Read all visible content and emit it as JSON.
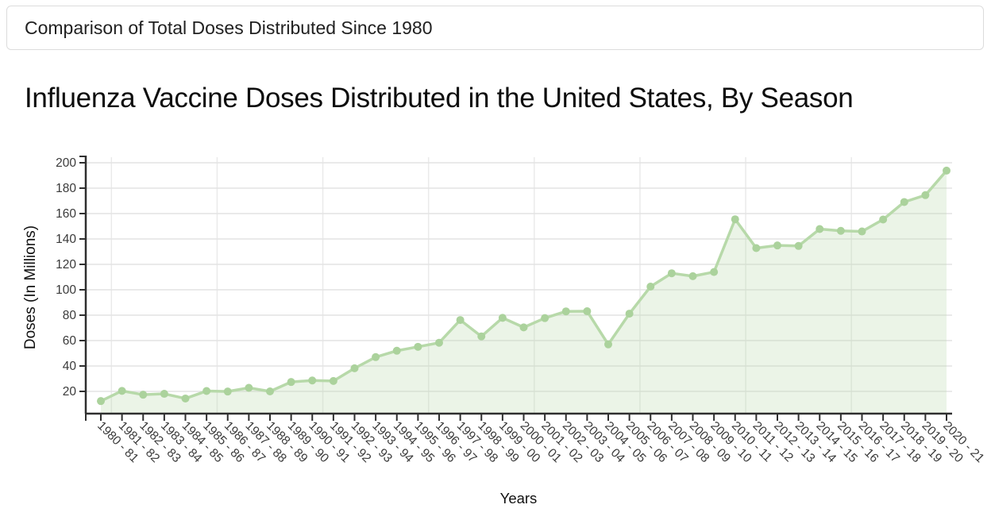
{
  "header": {
    "title": "Comparison of Total Doses Distributed Since 1980"
  },
  "page": {
    "title": "Influenza Vaccine Doses Distributed in the United States, By Season"
  },
  "chart_data": {
    "type": "area",
    "title": "Influenza Vaccine Doses Distributed in the United States, By Season",
    "xlabel": "Years",
    "ylabel": "Doses (In Millions)",
    "ylim": [
      0,
      200
    ],
    "yticks": [
      20,
      40,
      60,
      80,
      100,
      120,
      140,
      160,
      180,
      200
    ],
    "grid": true,
    "legend": "none",
    "line_color": "#b7d9a9",
    "marker_color": "#abd29c",
    "area_color": "rgba(183,217,169,0.28)",
    "categories": [
      "1980 - 81",
      "1981 - 82",
      "1982 - 83",
      "1983 - 84",
      "1984 - 85",
      "1985 - 86",
      "1986 - 87",
      "1987 - 88",
      "1988 - 89",
      "1989 - 90",
      "1990 - 91",
      "1991 - 92",
      "1992 - 93",
      "1993 - 94",
      "1994 - 95",
      "1995 - 96",
      "1996 - 97",
      "1997 - 98",
      "1998 - 99",
      "1999 - 00",
      "2000 - 01",
      "2001 - 02",
      "2002 - 03",
      "2003 - 04",
      "2004 - 05",
      "2005 - 06",
      "2006 - 07",
      "2007 - 08",
      "2008 - 09",
      "2009 - 10",
      "2010 - 11",
      "2011 - 12",
      "2012 - 13",
      "2013 - 14",
      "2014 - 15",
      "2015 - 16",
      "2016 - 17",
      "2017 - 18",
      "2018 - 19",
      "2019 - 20",
      "2020 - 21"
    ],
    "values": [
      12.4,
      20.4,
      17.4,
      18.1,
      14.4,
      20.3,
      19.9,
      22.8,
      20.0,
      27.4,
      28.6,
      28.2,
      38.2,
      47.0,
      52.0,
      55.1,
      58.3,
      76.2,
      63.3,
      77.9,
      70.4,
      77.7,
      83.0,
      83.1,
      57.0,
      81.2,
      102.5,
      113.0,
      110.7,
      114.0,
      155.5,
      132.8,
      134.9,
      134.5,
      147.8,
      146.4,
      145.9,
      155.3,
      169.1,
      174.5,
      193.8
    ]
  }
}
